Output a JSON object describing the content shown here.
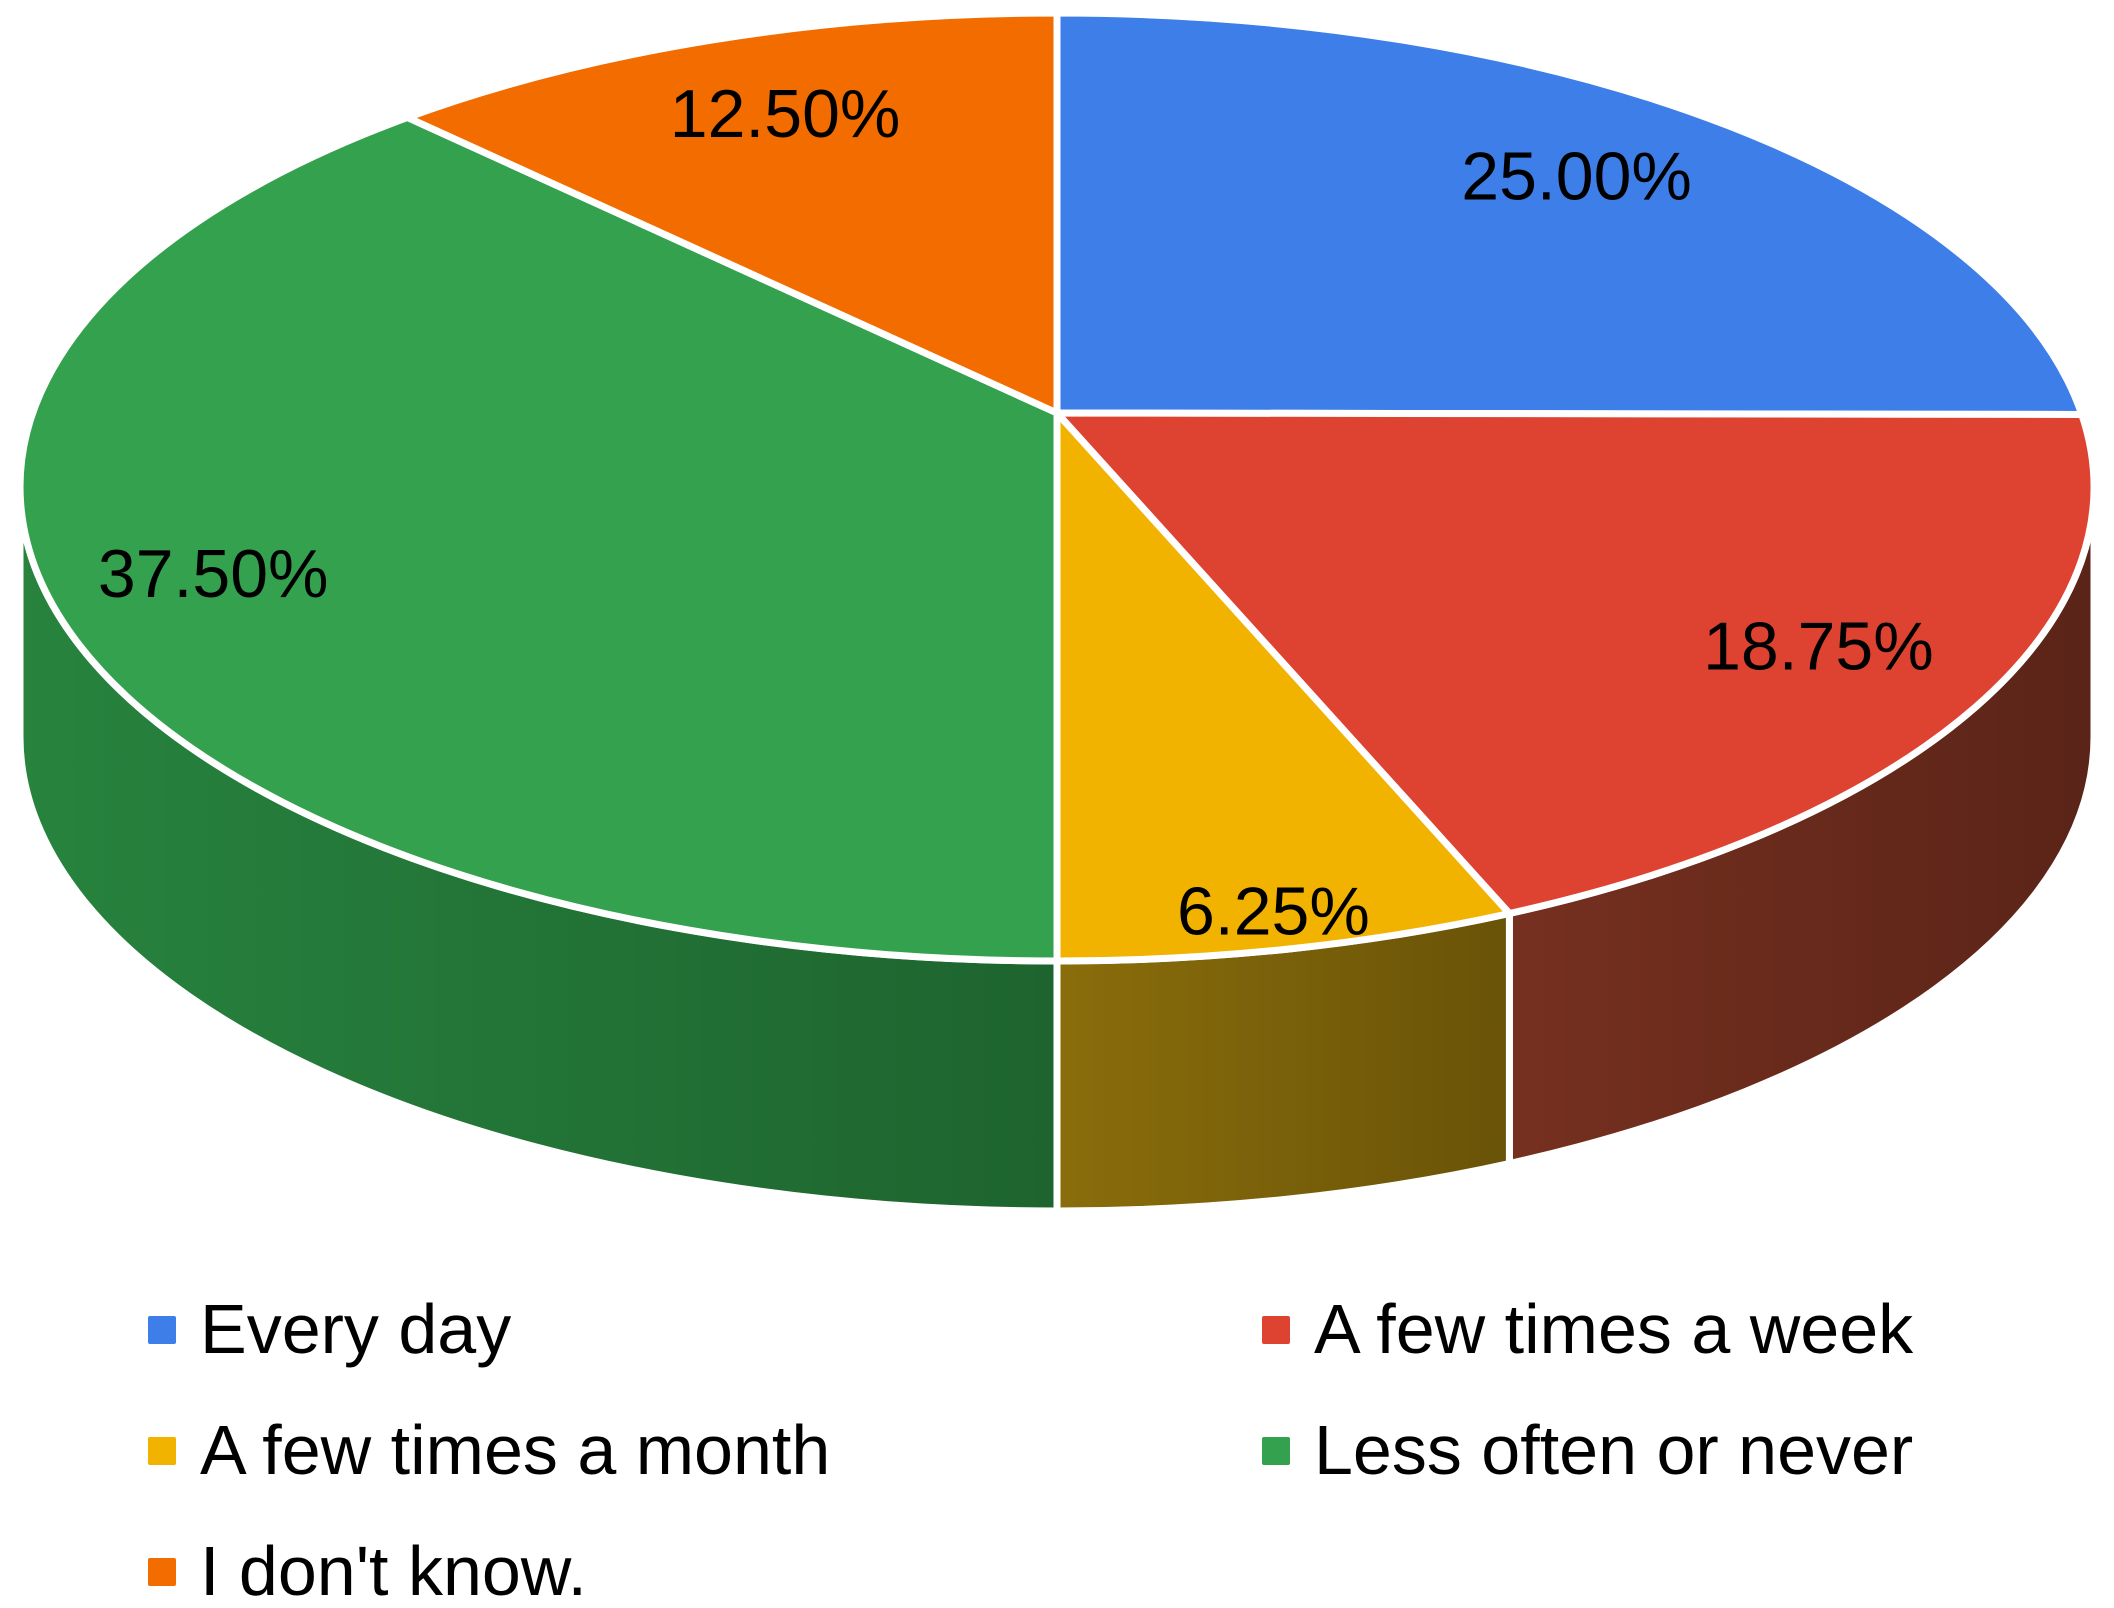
{
  "chart_data": {
    "type": "pie",
    "is3d": true,
    "title": "",
    "legend_position": "bottom",
    "direction": "clockwise",
    "start_angle_deg": 0,
    "background_color": "#ffffff",
    "label_text_color": "#000000",
    "separator_color": "#ffffff",
    "slices": [
      {
        "label": "Every day",
        "value": 25.0,
        "pct_label": "25.00%",
        "color": "#3d7ee8",
        "side_color": null
      },
      {
        "label": "A few times a week",
        "value": 18.75,
        "pct_label": "18.75%",
        "color": "#de4332",
        "side_color": "#76301f"
      },
      {
        "label": "A few times a month",
        "value": 6.25,
        "pct_label": "6.25%",
        "color": "#f2b200",
        "side_color": "#8a6d0b"
      },
      {
        "label": "Less often or never",
        "value": 37.5,
        "pct_label": "37.50%",
        "color": "#34a14e",
        "side_color": "#27833e"
      },
      {
        "label": "I don't know.",
        "value": 12.5,
        "pct_label": "12.50%",
        "color": "#f26c00",
        "side_color": null
      }
    ]
  }
}
